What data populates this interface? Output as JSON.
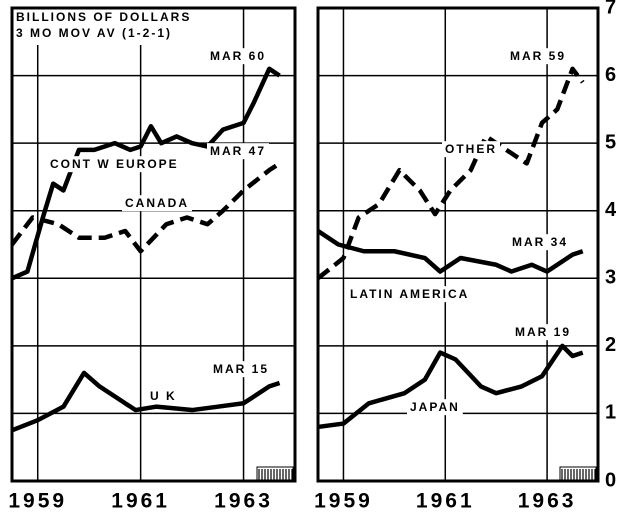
{
  "chart_data": [
    {
      "type": "line",
      "subtitle": [
        "BILLIONS OF DOLLARS",
        "3 MO MOV AV  (1-2-1)"
      ],
      "xlim": [
        1958.5,
        1964
      ],
      "xticks": [
        1959,
        1961,
        1963
      ],
      "ylim": [
        0,
        7
      ],
      "yticks": [
        0,
        1,
        2,
        3,
        4,
        5,
        6,
        7
      ],
      "grid": true,
      "series": [
        {
          "name": "CONT  W  EUROPE",
          "annotation": "MAR 60",
          "color": "#000",
          "dashed": false,
          "x": [
            1958.5,
            1958.8,
            1959.1,
            1959.3,
            1959.5,
            1959.8,
            1960.1,
            1960.5,
            1960.8,
            1961.0,
            1961.2,
            1961.4,
            1961.7,
            1962.0,
            1962.3,
            1962.6,
            1963.0,
            1963.2,
            1963.5,
            1963.7
          ],
          "values": [
            3.0,
            3.1,
            3.9,
            4.4,
            4.3,
            4.9,
            4.9,
            5.0,
            4.9,
            4.95,
            5.25,
            5.0,
            5.1,
            5.0,
            4.95,
            5.2,
            5.3,
            5.6,
            6.1,
            6.0
          ]
        },
        {
          "name": "CANADA",
          "annotation": "MAR 47",
          "color": "#000",
          "dashed": true,
          "x": [
            1958.5,
            1958.9,
            1959.4,
            1959.8,
            1960.3,
            1960.7,
            1961.0,
            1961.5,
            1961.9,
            1962.3,
            1962.6,
            1963.0,
            1963.5,
            1963.7
          ],
          "values": [
            3.5,
            3.9,
            3.8,
            3.6,
            3.6,
            3.7,
            3.4,
            3.8,
            3.9,
            3.8,
            4.0,
            4.3,
            4.6,
            4.7
          ]
        },
        {
          "name": "U K",
          "annotation": "MAR 15",
          "color": "#000",
          "dashed": false,
          "x": [
            1958.5,
            1959.0,
            1959.5,
            1959.9,
            1960.2,
            1960.6,
            1960.9,
            1961.3,
            1962.0,
            1962.5,
            1963.0,
            1963.5,
            1963.7
          ],
          "values": [
            0.75,
            0.9,
            1.1,
            1.6,
            1.4,
            1.2,
            1.05,
            1.1,
            1.05,
            1.1,
            1.15,
            1.4,
            1.45
          ]
        }
      ]
    },
    {
      "type": "line",
      "xlim": [
        1958.5,
        1964
      ],
      "xticks": [
        1959,
        1961,
        1963
      ],
      "ylim": [
        0,
        7
      ],
      "yticks": [
        0,
        1,
        2,
        3,
        4,
        5,
        6,
        7
      ],
      "grid": true,
      "series": [
        {
          "name": "OTHER",
          "annotation": "MAR 59",
          "color": "#000",
          "dashed": true,
          "x": [
            1958.5,
            1959.0,
            1959.3,
            1959.7,
            1960.1,
            1960.5,
            1960.8,
            1961.1,
            1961.5,
            1961.8,
            1962.2,
            1962.6,
            1962.9,
            1963.2,
            1963.5,
            1963.7
          ],
          "values": [
            3.0,
            3.3,
            3.9,
            4.1,
            4.6,
            4.3,
            3.95,
            4.3,
            4.6,
            5.1,
            4.9,
            4.7,
            5.3,
            5.5,
            6.1,
            5.9
          ]
        },
        {
          "name": "LATIN  AMERICA",
          "annotation": "MAR 34",
          "color": "#000",
          "dashed": false,
          "x": [
            1958.5,
            1958.9,
            1959.4,
            1960.0,
            1960.6,
            1960.9,
            1961.3,
            1962.0,
            1962.3,
            1962.7,
            1963.0,
            1963.5,
            1963.7
          ],
          "values": [
            3.7,
            3.5,
            3.4,
            3.4,
            3.3,
            3.1,
            3.3,
            3.2,
            3.1,
            3.2,
            3.1,
            3.35,
            3.4
          ]
        },
        {
          "name": "JAPAN",
          "annotation": "MAR 19",
          "color": "#000",
          "dashed": false,
          "x": [
            1958.5,
            1959.0,
            1959.5,
            1960.2,
            1960.6,
            1960.9,
            1961.2,
            1961.7,
            1962.0,
            1962.5,
            1962.9,
            1963.3,
            1963.5,
            1963.7
          ],
          "values": [
            0.8,
            0.85,
            1.15,
            1.3,
            1.5,
            1.9,
            1.8,
            1.4,
            1.3,
            1.4,
            1.55,
            2.0,
            1.85,
            1.9
          ]
        }
      ]
    }
  ]
}
